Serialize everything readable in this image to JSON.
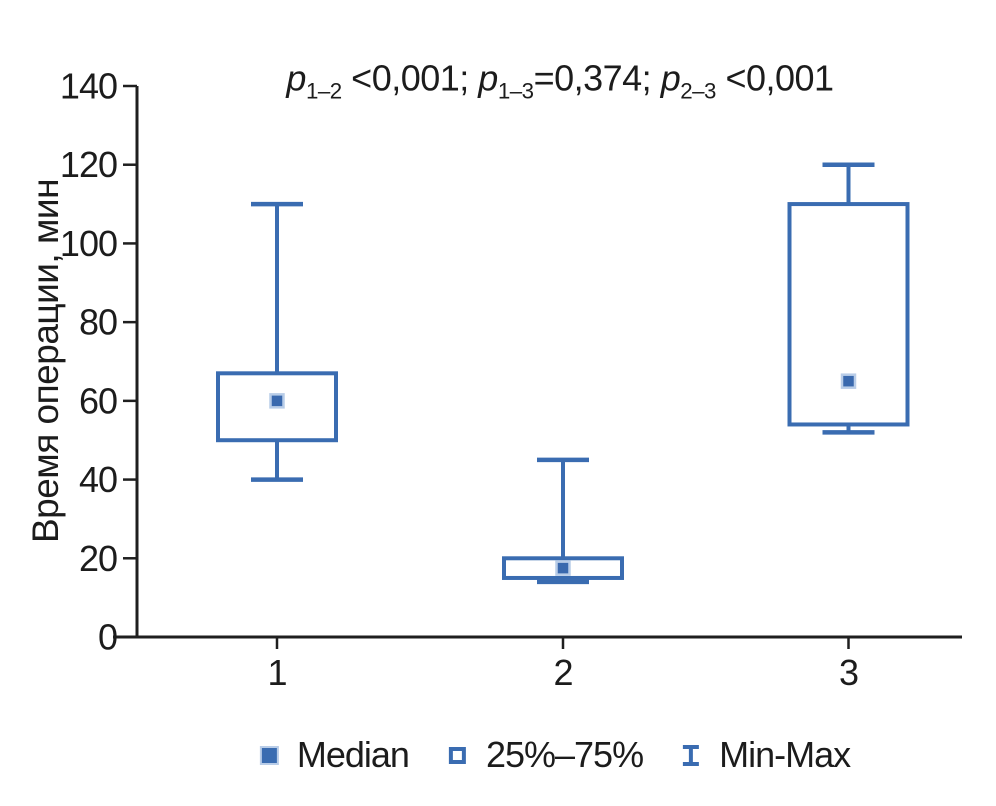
{
  "chart_data": {
    "type": "box",
    "title": "p1–2 <0,001; p1–3=0,374; p2–3 <0,001",
    "title_segments": [
      {
        "italic": "p",
        "sub": "1–2",
        "text": " <0,001; "
      },
      {
        "italic": "p",
        "sub": "1–3",
        "text": "=0,374; "
      },
      {
        "italic": "p",
        "sub": "2–3",
        "text": " <0,001"
      }
    ],
    "ylabel": "Время операции, мин",
    "xlabel": "",
    "ylim": [
      0,
      140
    ],
    "yticks": [
      0,
      20,
      40,
      60,
      80,
      100,
      120,
      140
    ],
    "categories": [
      "1",
      "2",
      "3"
    ],
    "groups": [
      {
        "category": "1",
        "min": 40,
        "q1": 50,
        "median": 60,
        "q3": 67,
        "max": 110
      },
      {
        "category": "2",
        "min": 14,
        "q1": 15,
        "median": 17.5,
        "q3": 20,
        "max": 45
      },
      {
        "category": "3",
        "min": 52,
        "q1": 54,
        "median": 65,
        "q3": 110,
        "max": 120
      }
    ],
    "legend_position": "bottom-center",
    "grid": false,
    "colors": {
      "box_line": "#3a6cb1",
      "median_fill": "#3a69ae",
      "median_halo": "#b9cde8",
      "axis": "#1f1f1f",
      "text": "#1c1c1c",
      "background": "#ffffff"
    }
  },
  "legend": {
    "items": [
      {
        "marker": "filled-square-icon",
        "label": "Median"
      },
      {
        "marker": "open-square-icon",
        "label": "25%–75%"
      },
      {
        "marker": "min-max-whisker-icon",
        "label": "Min-Max"
      }
    ]
  }
}
